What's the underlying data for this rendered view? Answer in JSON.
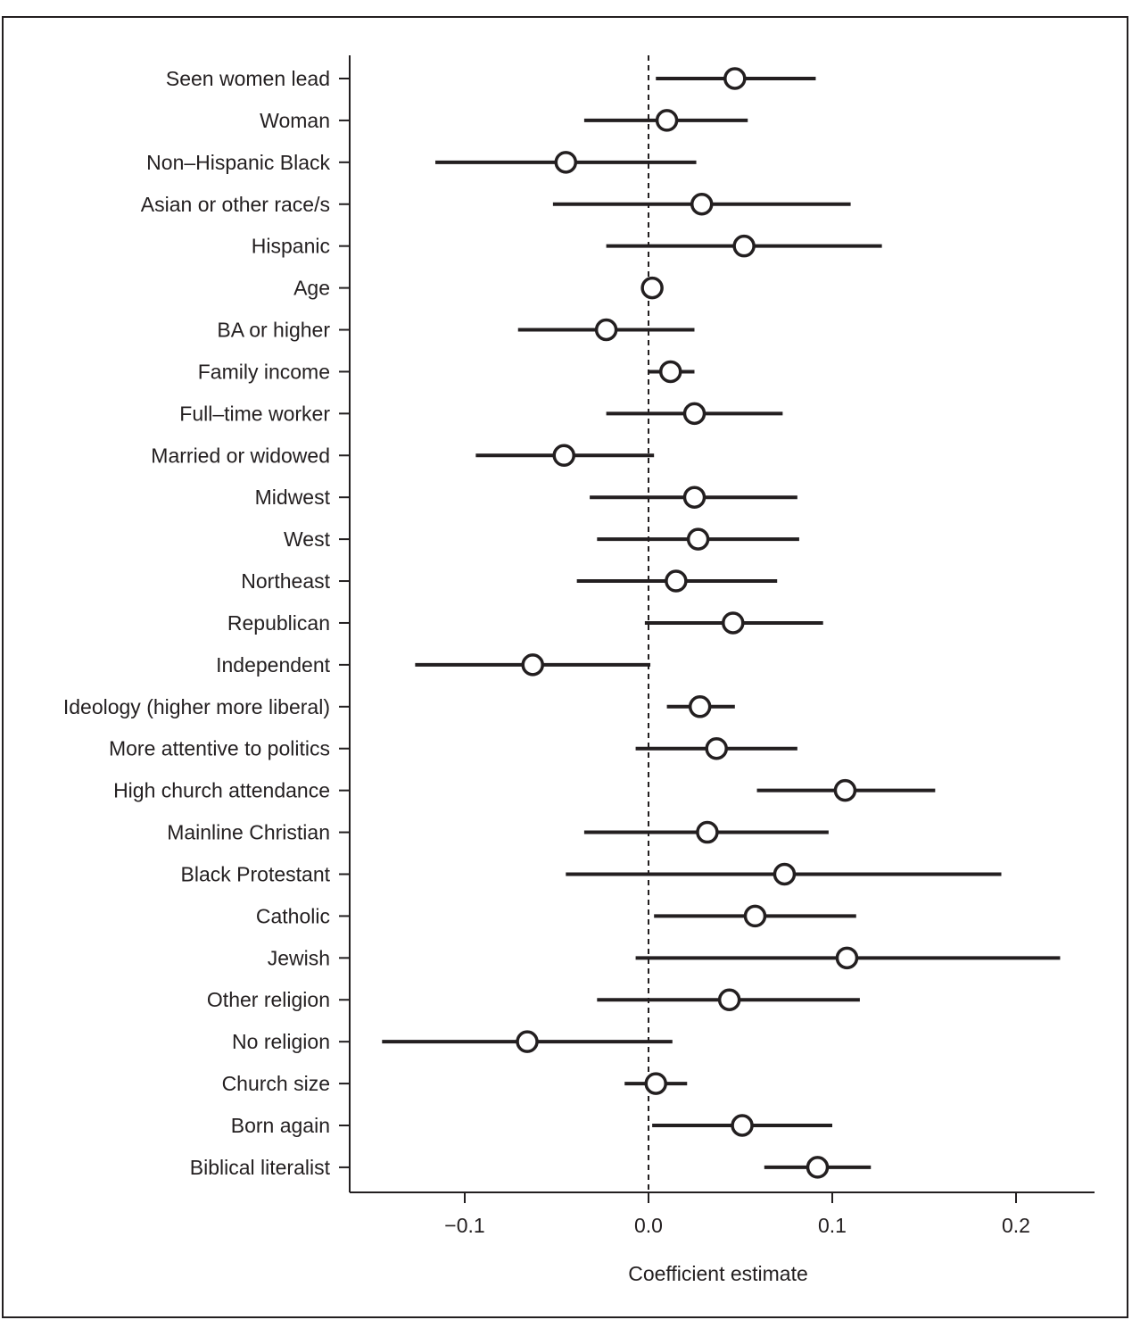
{
  "chart_data": {
    "type": "scatter",
    "subtype": "coefficient-plot",
    "title": "",
    "xlabel": "Coefficient estimate",
    "ylabel": "",
    "xlim": [
      -0.165,
      0.24
    ],
    "xticks": [
      -0.1,
      0.0,
      0.1,
      0.2
    ],
    "xtick_labels": [
      "−0.1",
      "0.0",
      "0.1",
      "0.2"
    ],
    "reference_line": 0.0,
    "grid": false,
    "colors": {
      "ink": "#231f20",
      "marker_fill": "#ffffff"
    },
    "points": [
      {
        "label": "Seen women lead",
        "estimate": 0.047,
        "lower": 0.004,
        "upper": 0.091
      },
      {
        "label": "Woman",
        "estimate": 0.01,
        "lower": -0.035,
        "upper": 0.054
      },
      {
        "label": "Non–Hispanic Black",
        "estimate": -0.045,
        "lower": -0.116,
        "upper": 0.026
      },
      {
        "label": "Asian or other race/s",
        "estimate": 0.029,
        "lower": -0.052,
        "upper": 0.11
      },
      {
        "label": "Hispanic",
        "estimate": 0.052,
        "lower": -0.023,
        "upper": 0.127
      },
      {
        "label": "Age",
        "estimate": 0.002,
        "lower": 0.0,
        "upper": 0.004
      },
      {
        "label": "BA or higher",
        "estimate": -0.023,
        "lower": -0.071,
        "upper": 0.025
      },
      {
        "label": "Family income",
        "estimate": 0.012,
        "lower": 0.0,
        "upper": 0.025
      },
      {
        "label": "Full–time worker",
        "estimate": 0.025,
        "lower": -0.023,
        "upper": 0.073
      },
      {
        "label": "Married or widowed",
        "estimate": -0.046,
        "lower": -0.094,
        "upper": 0.003
      },
      {
        "label": "Midwest",
        "estimate": 0.025,
        "lower": -0.032,
        "upper": 0.081
      },
      {
        "label": "West",
        "estimate": 0.027,
        "lower": -0.028,
        "upper": 0.082
      },
      {
        "label": "Northeast",
        "estimate": 0.015,
        "lower": -0.039,
        "upper": 0.07
      },
      {
        "label": "Republican",
        "estimate": 0.046,
        "lower": -0.002,
        "upper": 0.095
      },
      {
        "label": "Independent",
        "estimate": -0.063,
        "lower": -0.127,
        "upper": 0.001
      },
      {
        "label": "Ideology (higher more liberal)",
        "estimate": 0.028,
        "lower": 0.01,
        "upper": 0.047
      },
      {
        "label": "More attentive to politics",
        "estimate": 0.037,
        "lower": -0.007,
        "upper": 0.081
      },
      {
        "label": "High church attendance",
        "estimate": 0.107,
        "lower": 0.059,
        "upper": 0.156
      },
      {
        "label": "Mainline Christian",
        "estimate": 0.032,
        "lower": -0.035,
        "upper": 0.098
      },
      {
        "label": "Black Protestant",
        "estimate": 0.074,
        "lower": -0.045,
        "upper": 0.192
      },
      {
        "label": "Catholic",
        "estimate": 0.058,
        "lower": 0.003,
        "upper": 0.113
      },
      {
        "label": "Jewish",
        "estimate": 0.108,
        "lower": -0.007,
        "upper": 0.224
      },
      {
        "label": "Other religion",
        "estimate": 0.044,
        "lower": -0.028,
        "upper": 0.115
      },
      {
        "label": "No religion",
        "estimate": -0.066,
        "lower": -0.145,
        "upper": 0.013
      },
      {
        "label": "Church size",
        "estimate": 0.004,
        "lower": -0.013,
        "upper": 0.021
      },
      {
        "label": "Born again",
        "estimate": 0.051,
        "lower": 0.002,
        "upper": 0.1
      },
      {
        "label": "Biblical literalist",
        "estimate": 0.092,
        "lower": 0.063,
        "upper": 0.121
      }
    ]
  }
}
